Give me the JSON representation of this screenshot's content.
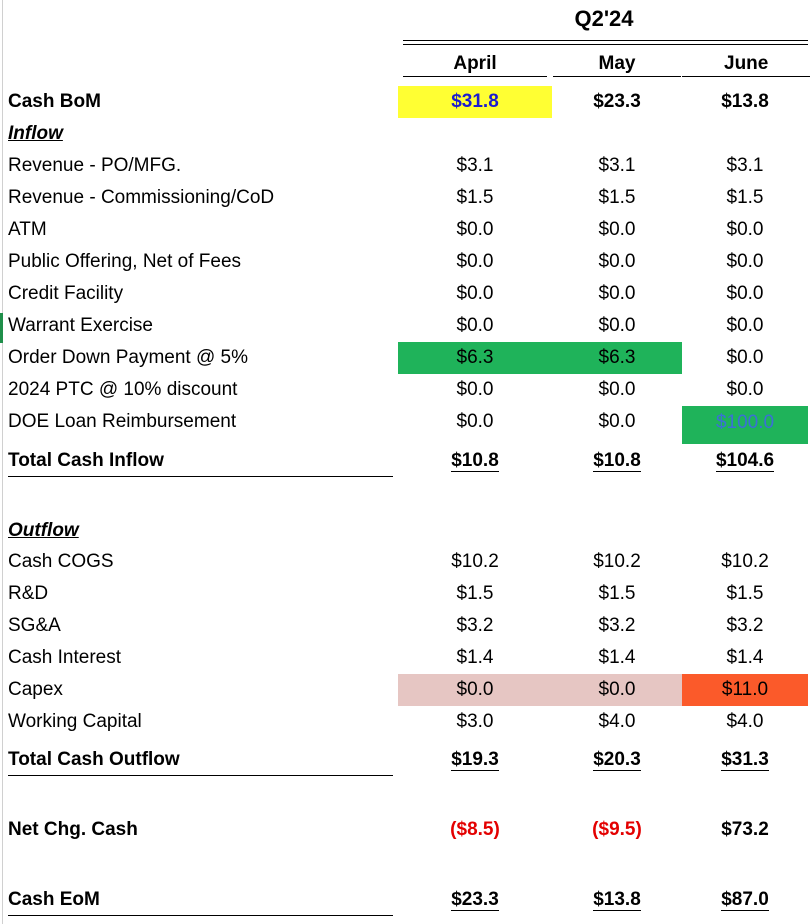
{
  "title": "Q2'24",
  "columns": [
    "April",
    "May",
    "June"
  ],
  "colors": {
    "yellow_highlight": "#ffff33",
    "green_highlight": "#1fb35a",
    "pink_highlight": "#e6c6c3",
    "orange_highlight": "#fb5a2a",
    "negative_red": "#e30000",
    "input_blue": "#1a1ad0"
  },
  "cash_bom": {
    "label": "Cash BoM",
    "values": [
      "$31.8",
      "$23.3",
      "$13.8"
    ]
  },
  "inflow": {
    "header": "Inflow",
    "rows": [
      {
        "label": "Revenue - PO/MFG.",
        "values": [
          "$3.1",
          "$3.1",
          "$3.1"
        ]
      },
      {
        "label": "Revenue - Commissioning/CoD",
        "values": [
          "$1.5",
          "$1.5",
          "$1.5"
        ]
      },
      {
        "label": "ATM",
        "values": [
          "$0.0",
          "$0.0",
          "$0.0"
        ]
      },
      {
        "label": "Public Offering, Net of Fees",
        "values": [
          "$0.0",
          "$0.0",
          "$0.0"
        ]
      },
      {
        "label": "Credit Facility",
        "values": [
          "$0.0",
          "$0.0",
          "$0.0"
        ]
      },
      {
        "label": "Warrant Exercise",
        "values": [
          "$0.0",
          "$0.0",
          "$0.0"
        ]
      },
      {
        "label": "Order Down Payment @ 5%",
        "values": [
          "$6.3",
          "$6.3",
          "$0.0"
        ]
      },
      {
        "label": "2024 PTC @ 10% discount",
        "values": [
          "$0.0",
          "$0.0",
          "$0.0"
        ]
      },
      {
        "label": "DOE Loan Reimbursement",
        "values": [
          "$0.0",
          "$0.0",
          "$100.0"
        ]
      }
    ],
    "total": {
      "label": "Total Cash Inflow",
      "values": [
        "$10.8",
        "$10.8",
        "$104.6"
      ]
    }
  },
  "outflow": {
    "header": "Outflow",
    "rows": [
      {
        "label": "Cash COGS",
        "values": [
          "$10.2",
          "$10.2",
          "$10.2"
        ]
      },
      {
        "label": "R&D",
        "values": [
          "$1.5",
          "$1.5",
          "$1.5"
        ]
      },
      {
        "label": "SG&A",
        "values": [
          "$3.2",
          "$3.2",
          "$3.2"
        ]
      },
      {
        "label": "Cash Interest",
        "values": [
          "$1.4",
          "$1.4",
          "$1.4"
        ]
      },
      {
        "label": "Capex",
        "values": [
          "$0.0",
          "$0.0",
          "$11.0"
        ]
      },
      {
        "label": "Working Capital",
        "values": [
          "$3.0",
          "$4.0",
          "$4.0"
        ]
      }
    ],
    "total": {
      "label": "Total Cash Outflow",
      "values": [
        "$19.3",
        "$20.3",
        "$31.3"
      ]
    }
  },
  "net_chg": {
    "label": "Net Chg. Cash",
    "values": [
      "($8.5)",
      "($9.5)",
      "$73.2"
    ]
  },
  "cash_eom": {
    "label": "Cash EoM",
    "values": [
      "$23.3",
      "$13.8",
      "$87.0"
    ]
  }
}
